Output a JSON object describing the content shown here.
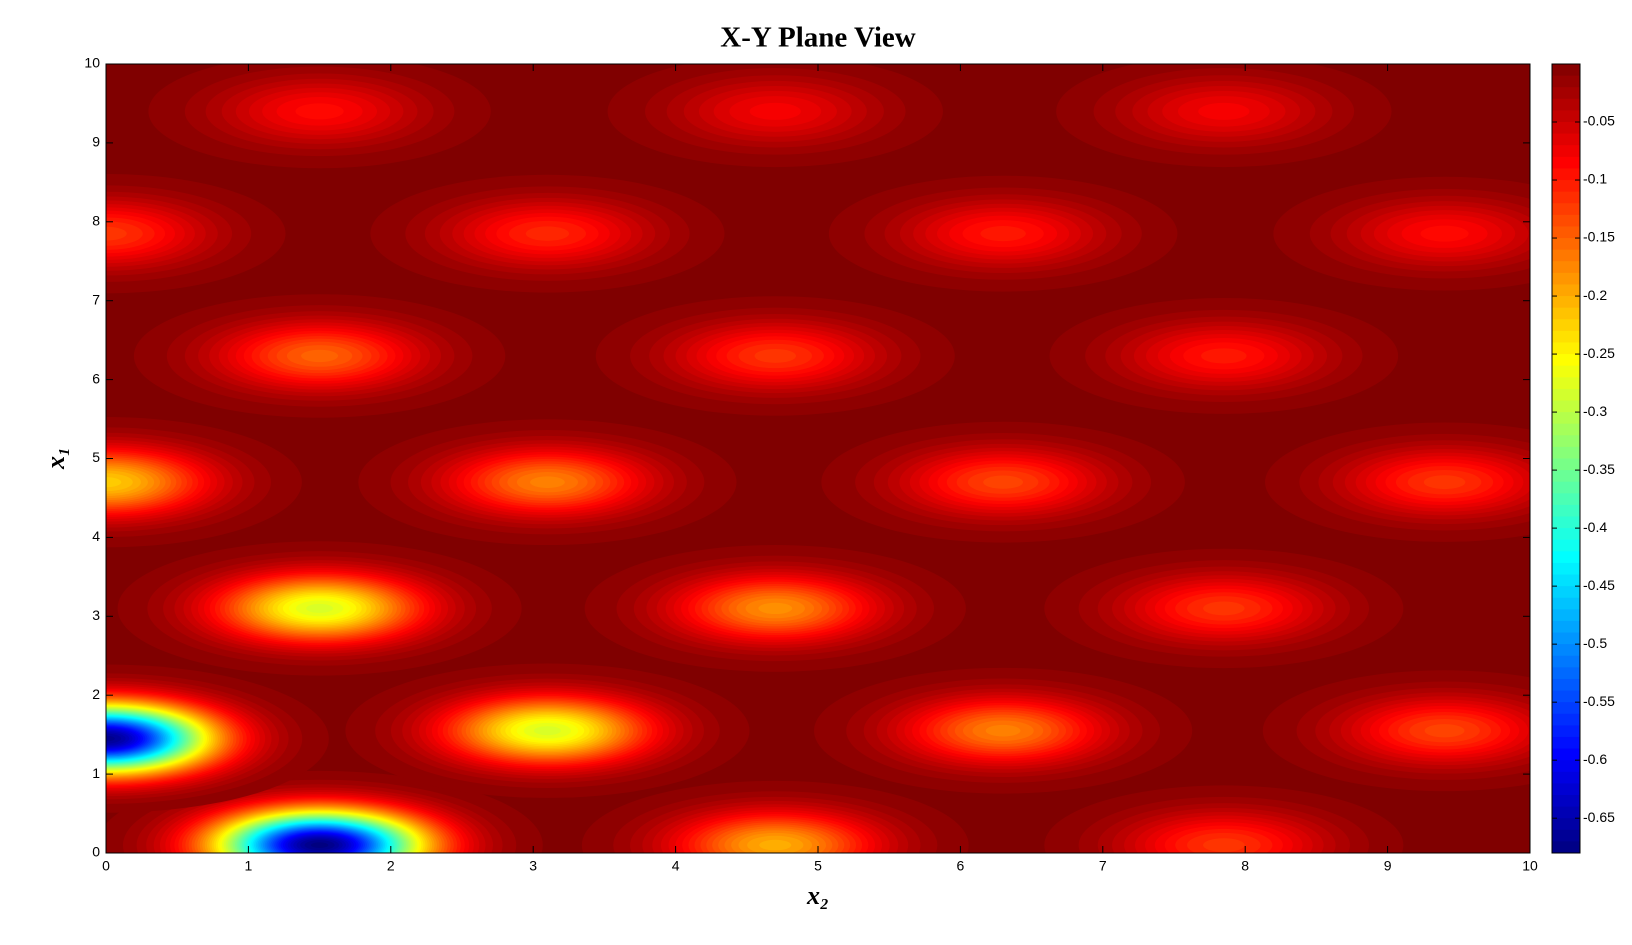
{
  "chart_data": {
    "type": "contour",
    "title": "X-Y Plane View",
    "xlabel": "x₂",
    "ylabel": "x₁",
    "xlim": [
      0,
      10
    ],
    "xticks": [
      0,
      1,
      2,
      3,
      4,
      5,
      6,
      7,
      8,
      9,
      10
    ],
    "ylim": [
      0,
      10
    ],
    "yticks": [
      0,
      1,
      2,
      3,
      4,
      5,
      6,
      7,
      8,
      9,
      10
    ],
    "colormap": "jet",
    "clim": [
      -0.68,
      0
    ],
    "cticks": [
      -0.65,
      -0.6,
      -0.55,
      -0.5,
      -0.45,
      -0.4,
      -0.35,
      -0.3,
      -0.25,
      -0.2,
      -0.15,
      -0.1,
      -0.05
    ],
    "peaks": {
      "x": [
        1.5,
        4.7,
        7.85,
        0,
        3.1,
        6.3,
        9.4,
        1.5,
        4.7,
        7.85,
        0,
        3.1,
        6.3,
        9.4,
        1.5,
        4.7,
        7.85,
        0,
        3.1,
        6.3,
        9.4,
        1.5,
        4.7,
        7.85
      ],
      "y": [
        0.1,
        0.1,
        0.1,
        1.45,
        1.55,
        1.55,
        1.55,
        3.1,
        3.1,
        3.1,
        4.7,
        4.7,
        4.7,
        4.7,
        6.3,
        6.3,
        6.3,
        7.85,
        7.85,
        7.85,
        7.85,
        9.4,
        9.4,
        9.4
      ],
      "values": [
        -0.68,
        -0.2,
        -0.12,
        -0.67,
        -0.28,
        -0.17,
        -0.13,
        -0.28,
        -0.18,
        -0.12,
        -0.22,
        -0.17,
        -0.13,
        -0.12,
        -0.15,
        -0.12,
        -0.1,
        -0.12,
        -0.11,
        -0.1,
        -0.09,
        -0.09,
        -0.08,
        -0.08
      ]
    }
  }
}
